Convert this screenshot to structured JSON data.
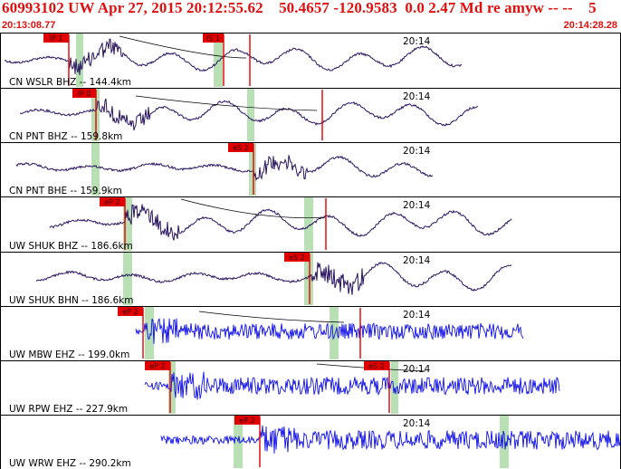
{
  "header": {
    "title": "60993102 UW Apr 27, 2015 20:12:55.62    50.4657 -120.9583  0.0 2.47 Md re amyw -- --    5",
    "start_time": "20:13:08.77",
    "end_time": "20:14:28.28"
  },
  "colors": {
    "header_text": "#e01010",
    "pick_box": "#e00000",
    "pick_line": "#e00000",
    "window_band": "#b8e0b4",
    "trace_broadband": "#2a1460",
    "trace_shortperiod": "#1010e8",
    "grid": "#000000"
  },
  "panels": [
    {
      "label": "CN WSLR BHZ -- 144.4km",
      "time_tick": "20:14",
      "color": "broadband",
      "picks": [
        {
          "label": "IP 1"
        },
        {
          "label": "IS 1"
        }
      ]
    },
    {
      "label": "CN PNT BHZ -- 159.8km",
      "time_tick": "20:14",
      "color": "broadband",
      "picks": [
        {
          "label": "IP 0"
        }
      ]
    },
    {
      "label": "CN PNT BHE -- 159.9km",
      "time_tick": "20:14",
      "color": "broadband",
      "picks": [
        {
          "label": "eS 2"
        }
      ]
    },
    {
      "label": "UW SHUK BHZ -- 186.6km",
      "time_tick": "20:14",
      "color": "broadband",
      "picks": [
        {
          "label": "eP 2"
        }
      ]
    },
    {
      "label": "UW SHUK BHN -- 186.6km",
      "time_tick": "20:14",
      "color": "broadband",
      "picks": [
        {
          "label": "eS 2"
        }
      ]
    },
    {
      "label": "UW MBW EHZ -- 199.0km",
      "time_tick": "20:14",
      "color": "shortperiod",
      "picks": [
        {
          "label": "eP 2"
        }
      ]
    },
    {
      "label": "UW RPW EHZ -- 227.9km",
      "time_tick": "20:14",
      "color": "shortperiod",
      "picks": [
        {
          "label": "eP 2"
        },
        {
          "label": "eS 2"
        }
      ]
    },
    {
      "label": "UW WRW EHZ -- 290.2km",
      "time_tick": "20:14",
      "color": "shortperiod",
      "picks": [
        {
          "label": "eP 2"
        }
      ]
    }
  ]
}
